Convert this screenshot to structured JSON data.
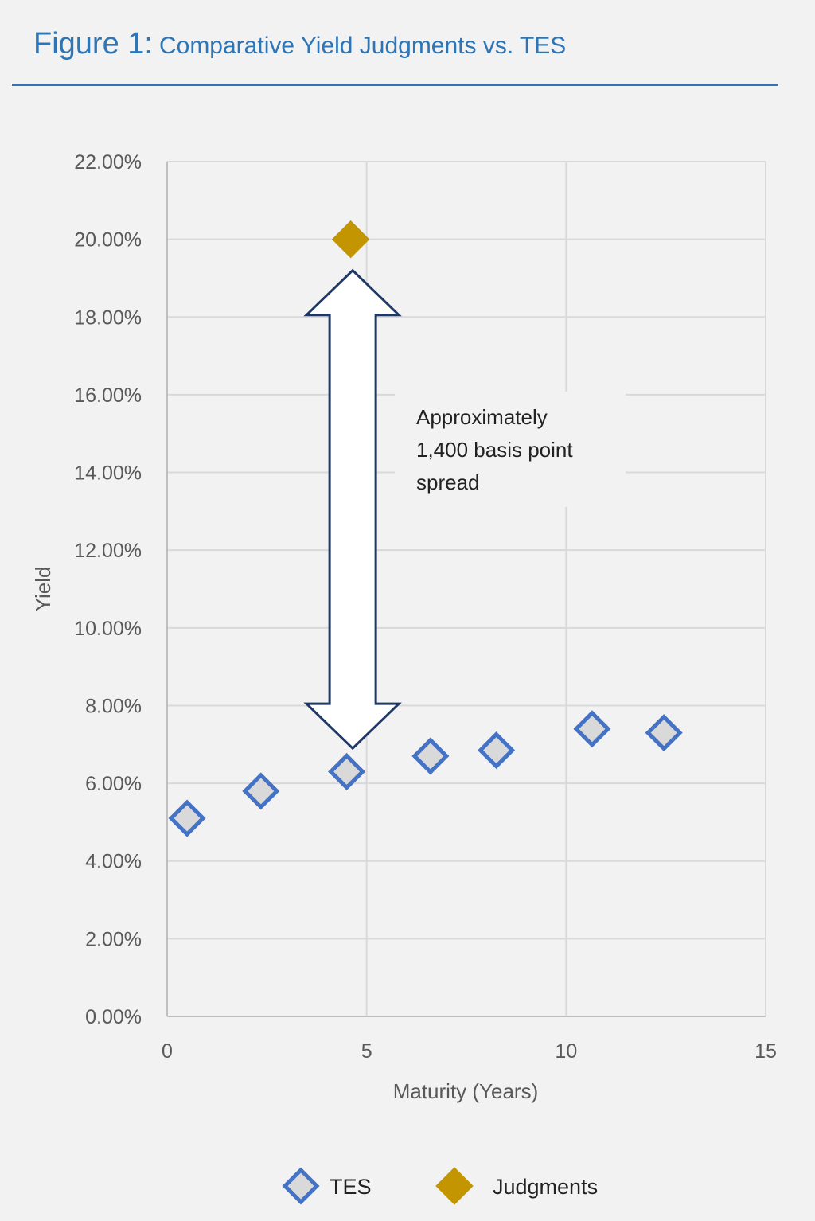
{
  "figure": {
    "label": "Figure 1:",
    "title": "Comparative Yield Judgments vs. TES"
  },
  "chart_data": {
    "type": "scatter",
    "title": "Comparative Yield Judgments vs. TES",
    "xlabel": "Maturity (Years)",
    "ylabel": "Yield",
    "xlim": [
      0,
      15
    ],
    "ylim": [
      0,
      22
    ],
    "x_ticks": [
      "0",
      "5",
      "10",
      "15"
    ],
    "y_ticks": [
      "0.00%",
      "2.00%",
      "4.00%",
      "6.00%",
      "8.00%",
      "10.00%",
      "12.00%",
      "14.00%",
      "16.00%",
      "18.00%",
      "20.00%",
      "22.00%"
    ],
    "grid": true,
    "legend_position": "bottom",
    "series": [
      {
        "name": "TES",
        "color": "#4472c4",
        "fill": "#d9d9d9",
        "marker": "hollow-diamond",
        "points": [
          {
            "x": 0.5,
            "y": 5.1
          },
          {
            "x": 2.35,
            "y": 5.8
          },
          {
            "x": 4.5,
            "y": 6.3
          },
          {
            "x": 6.6,
            "y": 6.7
          },
          {
            "x": 8.25,
            "y": 6.85
          },
          {
            "x": 10.65,
            "y": 7.4
          },
          {
            "x": 12.45,
            "y": 7.3
          }
        ]
      },
      {
        "name": "Judgments",
        "color": "#c39500",
        "marker": "filled-diamond",
        "points": [
          {
            "x": 4.6,
            "y": 20.0
          }
        ]
      }
    ],
    "annotation": {
      "lines": [
        "Approximately",
        "1,400 basis point",
        "spread"
      ],
      "arrow_from_y": 19.2,
      "arrow_to_y": 6.9,
      "arrow_x": 4.65
    }
  }
}
